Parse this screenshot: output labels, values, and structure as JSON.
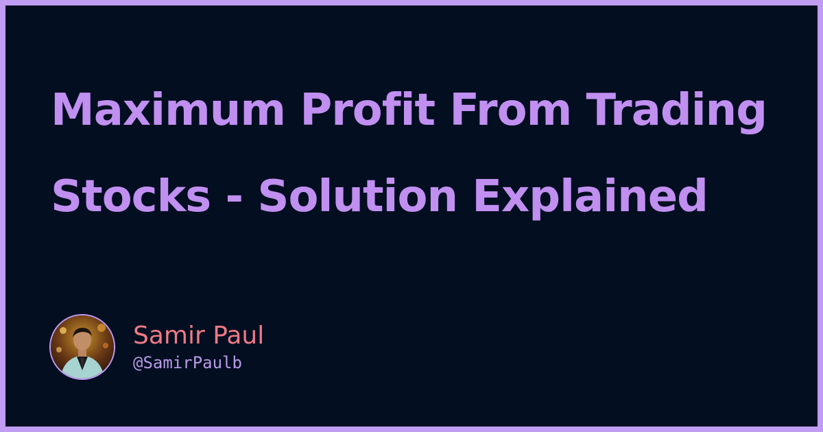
{
  "title": "Maximum Profit From Trading Stocks - Solution Explained",
  "author": {
    "name": "Samir Paul",
    "handle": "@SamirPaulb"
  },
  "colors": {
    "frame": "#c09cf2",
    "background": "#040e21",
    "title": "#c08ff0",
    "author_name": "#ef7a86",
    "author_handle": "#b79be6"
  }
}
